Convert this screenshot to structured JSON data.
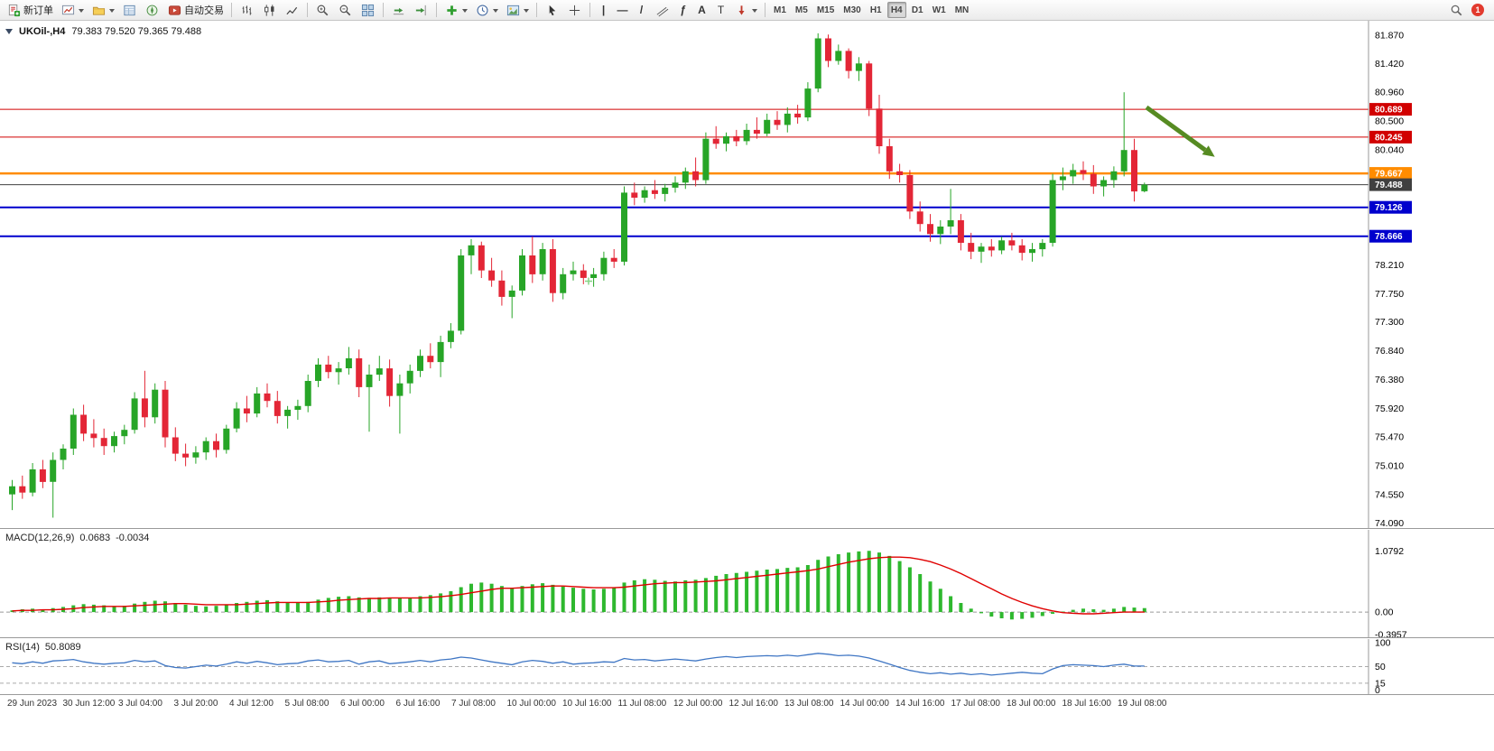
{
  "toolbar": {
    "new_order_label": "新订单",
    "autotrading_label": "自动交易",
    "timeframes": [
      "M1",
      "M5",
      "M15",
      "M30",
      "H1",
      "H4",
      "D1",
      "W1",
      "MN"
    ],
    "active_timeframe": "H4",
    "notification_count": "1",
    "glyphs": {
      "vline": "|",
      "hline": "—",
      "trendline": "/",
      "fibonacci": "ƒ",
      "text": "A",
      "label": "T"
    }
  },
  "chart": {
    "symbol_period": "UKOil-,H4",
    "ohlc": "79.383 79.520 79.365 79.488"
  },
  "chart_data": {
    "type": "candlestick",
    "symbol": "UKOil-",
    "timeframe": "H4",
    "colors": {
      "bull": "#27a527",
      "bear": "#e32636",
      "macd_hist": "#2eb82e",
      "macd_signal": "#e00000",
      "rsi_line": "#3f76c4",
      "arrow": "#568b22",
      "cross": "#86d586"
    },
    "price_axis": {
      "min": 74.0,
      "max": 82.1,
      "ticks": [
        "81.870",
        "81.420",
        "80.960",
        "80.500",
        "80.040",
        "78.210",
        "77.750",
        "77.300",
        "76.840",
        "76.380",
        "75.920",
        "75.470",
        "75.010",
        "74.550",
        "74.090"
      ]
    },
    "levels": [
      {
        "price": 80.689,
        "label": "80.689",
        "color": "#d10000",
        "width": 1
      },
      {
        "price": 80.245,
        "label": "80.245",
        "color": "#d10000",
        "width": 1
      },
      {
        "price": 79.667,
        "label": "79.667",
        "color": "#ff8c00",
        "width": 2.5
      },
      {
        "price": 79.488,
        "label": "79.488",
        "color": "#404040",
        "width": 1
      },
      {
        "price": 79.126,
        "label": "79.126",
        "color": "#0000cd",
        "width": 2
      },
      {
        "price": 78.666,
        "label": "78.666",
        "color": "#0000cd",
        "width": 2
      }
    ],
    "annotations": {
      "arrow": {
        "from_index": 111.5,
        "from_price": 80.72,
        "to_index": 118.2,
        "to_price": 79.93,
        "color": "#568b22"
      },
      "cross": {
        "index": 56.5,
        "price": 77.95
      }
    },
    "time_labels": [
      "29 Jun 2023",
      "30 Jun 12:00",
      "3 Jul 04:00",
      "3 Jul 20:00",
      "4 Jul 12:00",
      "5 Jul 08:00",
      "6 Jul 00:00",
      "6 Jul 16:00",
      "7 Jul 08:00",
      "10 Jul 00:00",
      "10 Jul 16:00",
      "11 Jul 08:00",
      "12 Jul 00:00",
      "12 Jul 16:00",
      "13 Jul 08:00",
      "14 Jul 00:00",
      "14 Jul 16:00",
      "17 Jul 08:00",
      "18 Jul 00:00",
      "18 Jul 16:00",
      "19 Jul 08:00"
    ],
    "candles": [
      [
        74.55,
        74.78,
        74.3,
        74.68
      ],
      [
        74.68,
        74.85,
        74.48,
        74.58
      ],
      [
        74.58,
        75.05,
        74.52,
        74.95
      ],
      [
        74.95,
        75.1,
        74.65,
        74.75
      ],
      [
        74.75,
        75.22,
        74.18,
        75.1
      ],
      [
        75.1,
        75.35,
        74.95,
        75.28
      ],
      [
        75.28,
        75.92,
        75.18,
        75.82
      ],
      [
        75.82,
        75.98,
        75.4,
        75.52
      ],
      [
        75.52,
        75.75,
        75.3,
        75.45
      ],
      [
        75.45,
        75.6,
        75.18,
        75.32
      ],
      [
        75.32,
        75.55,
        75.22,
        75.48
      ],
      [
        75.48,
        75.66,
        75.35,
        75.58
      ],
      [
        75.58,
        76.18,
        75.52,
        76.08
      ],
      [
        76.08,
        76.52,
        75.62,
        75.78
      ],
      [
        75.78,
        76.32,
        75.68,
        76.22
      ],
      [
        76.22,
        76.36,
        75.3,
        75.46
      ],
      [
        75.46,
        75.62,
        75.08,
        75.2
      ],
      [
        75.2,
        75.36,
        75.0,
        75.14
      ],
      [
        75.14,
        75.32,
        75.04,
        75.22
      ],
      [
        75.22,
        75.46,
        75.1,
        75.4
      ],
      [
        75.4,
        75.52,
        75.14,
        75.26
      ],
      [
        75.26,
        75.66,
        75.2,
        75.6
      ],
      [
        75.6,
        76.02,
        75.54,
        75.92
      ],
      [
        75.92,
        76.12,
        75.7,
        75.84
      ],
      [
        75.84,
        76.26,
        75.78,
        76.16
      ],
      [
        76.16,
        76.32,
        75.94,
        76.04
      ],
      [
        76.04,
        76.2,
        75.68,
        75.8
      ],
      [
        75.8,
        75.96,
        75.6,
        75.9
      ],
      [
        75.9,
        76.06,
        75.74,
        75.96
      ],
      [
        75.96,
        76.46,
        75.86,
        76.36
      ],
      [
        76.36,
        76.72,
        76.26,
        76.62
      ],
      [
        76.62,
        76.76,
        76.4,
        76.5
      ],
      [
        76.5,
        76.66,
        76.3,
        76.56
      ],
      [
        76.56,
        76.9,
        76.46,
        76.72
      ],
      [
        76.72,
        76.86,
        76.1,
        76.26
      ],
      [
        76.26,
        76.62,
        75.55,
        76.46
      ],
      [
        76.46,
        76.76,
        76.36,
        76.56
      ],
      [
        76.56,
        76.7,
        75.95,
        76.12
      ],
      [
        76.12,
        76.46,
        75.52,
        76.32
      ],
      [
        76.32,
        76.62,
        76.16,
        76.52
      ],
      [
        76.52,
        76.86,
        76.42,
        76.76
      ],
      [
        76.76,
        76.96,
        76.56,
        76.66
      ],
      [
        76.66,
        77.08,
        76.42,
        76.98
      ],
      [
        76.98,
        77.28,
        76.88,
        77.16
      ],
      [
        77.16,
        78.46,
        77.1,
        78.36
      ],
      [
        78.36,
        78.62,
        78.06,
        78.52
      ],
      [
        78.52,
        78.58,
        78.0,
        78.12
      ],
      [
        78.12,
        78.32,
        77.86,
        77.96
      ],
      [
        77.96,
        78.12,
        77.56,
        77.7
      ],
      [
        77.7,
        77.88,
        77.36,
        77.8
      ],
      [
        77.8,
        78.46,
        77.72,
        78.36
      ],
      [
        78.36,
        78.66,
        77.92,
        78.06
      ],
      [
        78.06,
        78.56,
        77.96,
        78.46
      ],
      [
        78.46,
        78.62,
        77.62,
        77.76
      ],
      [
        77.76,
        78.16,
        77.66,
        78.06
      ],
      [
        78.06,
        78.26,
        77.96,
        78.12
      ],
      [
        78.12,
        78.22,
        77.9,
        78.0
      ],
      [
        78.0,
        78.16,
        77.86,
        78.06
      ],
      [
        78.06,
        78.42,
        77.96,
        78.32
      ],
      [
        78.32,
        78.46,
        78.16,
        78.26
      ],
      [
        78.26,
        79.46,
        78.2,
        79.36
      ],
      [
        79.36,
        79.52,
        79.16,
        79.28
      ],
      [
        79.28,
        79.46,
        79.2,
        79.4
      ],
      [
        79.4,
        79.56,
        79.26,
        79.34
      ],
      [
        79.34,
        79.5,
        79.22,
        79.44
      ],
      [
        79.44,
        79.62,
        79.36,
        79.52
      ],
      [
        79.52,
        79.76,
        79.42,
        79.7
      ],
      [
        79.7,
        79.92,
        79.46,
        79.56
      ],
      [
        79.56,
        80.32,
        79.5,
        80.22
      ],
      [
        80.22,
        80.42,
        80.06,
        80.14
      ],
      [
        80.14,
        80.32,
        80.02,
        80.26
      ],
      [
        80.26,
        80.36,
        80.1,
        80.18
      ],
      [
        80.18,
        80.46,
        80.12,
        80.36
      ],
      [
        80.36,
        80.56,
        80.22,
        80.3
      ],
      [
        80.3,
        80.62,
        80.26,
        80.52
      ],
      [
        80.52,
        80.66,
        80.36,
        80.44
      ],
      [
        80.44,
        80.72,
        80.32,
        80.62
      ],
      [
        80.62,
        80.76,
        80.46,
        80.56
      ],
      [
        80.56,
        81.12,
        80.5,
        81.02
      ],
      [
        81.02,
        81.9,
        80.96,
        81.82
      ],
      [
        81.82,
        81.88,
        81.36,
        81.46
      ],
      [
        81.46,
        81.72,
        81.4,
        81.62
      ],
      [
        81.62,
        81.66,
        81.18,
        81.3
      ],
      [
        81.3,
        81.52,
        81.14,
        81.42
      ],
      [
        81.42,
        81.46,
        80.58,
        80.7
      ],
      [
        80.7,
        80.92,
        79.98,
        80.1
      ],
      [
        80.1,
        80.22,
        79.58,
        79.7
      ],
      [
        79.7,
        79.82,
        79.52,
        79.64
      ],
      [
        79.64,
        79.72,
        78.94,
        79.06
      ],
      [
        79.06,
        79.22,
        78.74,
        78.86
      ],
      [
        78.86,
        79.02,
        78.58,
        78.7
      ],
      [
        78.7,
        78.92,
        78.54,
        78.82
      ],
      [
        78.82,
        79.42,
        78.7,
        78.92
      ],
      [
        78.92,
        79.02,
        78.44,
        78.56
      ],
      [
        78.56,
        78.72,
        78.3,
        78.42
      ],
      [
        78.42,
        78.56,
        78.24,
        78.5
      ],
      [
        78.5,
        78.62,
        78.34,
        78.44
      ],
      [
        78.44,
        78.66,
        78.38,
        78.6
      ],
      [
        78.6,
        78.72,
        78.44,
        78.52
      ],
      [
        78.52,
        78.62,
        78.28,
        78.4
      ],
      [
        78.4,
        78.56,
        78.26,
        78.46
      ],
      [
        78.46,
        78.62,
        78.34,
        78.56
      ],
      [
        78.56,
        79.66,
        78.5,
        79.56
      ],
      [
        79.56,
        79.76,
        79.4,
        79.62
      ],
      [
        79.62,
        79.82,
        79.5,
        79.72
      ],
      [
        79.72,
        79.86,
        79.56,
        79.66
      ],
      [
        79.66,
        79.8,
        79.34,
        79.46
      ],
      [
        79.46,
        79.62,
        79.3,
        79.56
      ],
      [
        79.56,
        79.78,
        79.44,
        79.7
      ],
      [
        79.7,
        80.96,
        79.62,
        80.04
      ],
      [
        80.04,
        80.22,
        79.22,
        79.38
      ],
      [
        79.383,
        79.52,
        79.365,
        79.488
      ]
    ],
    "macd": {
      "name": "MACD(12,26,9)",
      "value_main": "0.0683",
      "value_signal": "-0.0034",
      "scale_max": 1.45,
      "scale_min": -0.46,
      "axis_ticks": [
        "1.0792",
        "0.00",
        "-0.3957"
      ],
      "histogram": [
        0.03,
        0.05,
        0.06,
        0.05,
        0.07,
        0.09,
        0.12,
        0.14,
        0.13,
        0.12,
        0.1,
        0.11,
        0.15,
        0.18,
        0.2,
        0.19,
        0.16,
        0.13,
        0.11,
        0.1,
        0.11,
        0.13,
        0.16,
        0.18,
        0.2,
        0.21,
        0.19,
        0.17,
        0.16,
        0.18,
        0.22,
        0.25,
        0.27,
        0.28,
        0.26,
        0.25,
        0.26,
        0.25,
        0.24,
        0.25,
        0.28,
        0.3,
        0.33,
        0.37,
        0.44,
        0.5,
        0.52,
        0.5,
        0.46,
        0.43,
        0.46,
        0.49,
        0.51,
        0.48,
        0.45,
        0.43,
        0.41,
        0.4,
        0.41,
        0.43,
        0.52,
        0.56,
        0.58,
        0.57,
        0.55,
        0.54,
        0.56,
        0.57,
        0.6,
        0.64,
        0.67,
        0.69,
        0.71,
        0.73,
        0.75,
        0.76,
        0.78,
        0.79,
        0.83,
        0.92,
        0.98,
        1.02,
        1.05,
        1.07,
        1.08,
        1.05,
        0.99,
        0.9,
        0.79,
        0.67,
        0.54,
        0.41,
        0.28,
        0.16,
        0.06,
        -0.02,
        -0.08,
        -0.11,
        -0.13,
        -0.12,
        -0.1,
        -0.07,
        -0.03,
        0.01,
        0.04,
        0.06,
        0.05,
        0.04,
        0.06,
        0.09,
        0.08,
        0.07
      ],
      "signal": [
        0.02,
        0.03,
        0.03,
        0.04,
        0.04,
        0.05,
        0.06,
        0.08,
        0.09,
        0.1,
        0.1,
        0.1,
        0.11,
        0.12,
        0.13,
        0.14,
        0.15,
        0.15,
        0.14,
        0.13,
        0.13,
        0.13,
        0.13,
        0.14,
        0.15,
        0.16,
        0.17,
        0.17,
        0.17,
        0.17,
        0.18,
        0.19,
        0.21,
        0.22,
        0.23,
        0.24,
        0.24,
        0.25,
        0.25,
        0.25,
        0.25,
        0.26,
        0.27,
        0.29,
        0.31,
        0.34,
        0.37,
        0.4,
        0.42,
        0.42,
        0.43,
        0.44,
        0.45,
        0.46,
        0.46,
        0.45,
        0.44,
        0.43,
        0.43,
        0.43,
        0.44,
        0.46,
        0.48,
        0.5,
        0.51,
        0.52,
        0.52,
        0.53,
        0.54,
        0.55,
        0.57,
        0.59,
        0.61,
        0.63,
        0.65,
        0.67,
        0.69,
        0.71,
        0.73,
        0.76,
        0.8,
        0.84,
        0.88,
        0.91,
        0.94,
        0.96,
        0.97,
        0.97,
        0.96,
        0.93,
        0.89,
        0.83,
        0.76,
        0.68,
        0.59,
        0.5,
        0.41,
        0.32,
        0.24,
        0.17,
        0.11,
        0.06,
        0.02,
        -0.01,
        -0.02,
        -0.03,
        -0.03,
        -0.02,
        -0.01,
        0.0,
        0.0,
        0.0
      ]
    },
    "rsi": {
      "name": "RSI(14)",
      "value": "50.8089",
      "scale_max": 108,
      "scale_min": -10,
      "axis_ticks": [
        "100",
        "50",
        "15",
        "0"
      ],
      "levels": [
        50,
        15
      ],
      "values": [
        58,
        56,
        60,
        57,
        62,
        63,
        65,
        60,
        57,
        55,
        57,
        58,
        63,
        60,
        62,
        52,
        48,
        47,
        50,
        53,
        51,
        55,
        60,
        57,
        61,
        58,
        54,
        56,
        57,
        62,
        64,
        60,
        61,
        63,
        55,
        60,
        62,
        56,
        58,
        60,
        63,
        60,
        64,
        66,
        70,
        68,
        64,
        60,
        57,
        54,
        60,
        63,
        61,
        57,
        60,
        55,
        57,
        58,
        60,
        59,
        67,
        64,
        65,
        62,
        64,
        66,
        64,
        62,
        66,
        69,
        71,
        69,
        71,
        72,
        73,
        72,
        74,
        72,
        75,
        78,
        76,
        73,
        74,
        72,
        68,
        62,
        55,
        48,
        42,
        38,
        35,
        37,
        34,
        36,
        33,
        35,
        32,
        34,
        36,
        38,
        36,
        35,
        45,
        52,
        54,
        53,
        52,
        50,
        53,
        55,
        51,
        51
      ]
    }
  }
}
